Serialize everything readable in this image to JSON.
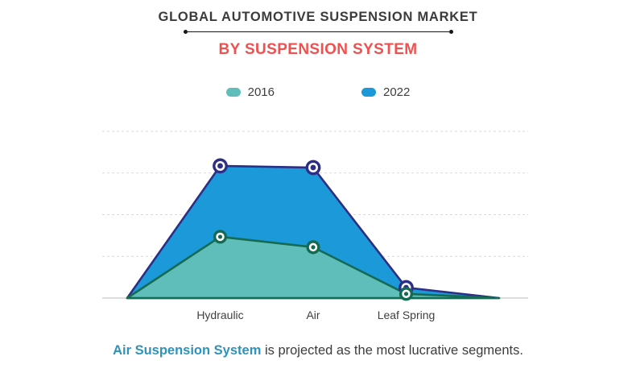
{
  "header": {
    "title": "GLOBAL AUTOMOTIVE SUSPENSION MARKET",
    "title_color": "#3b3b3d",
    "subtitle": "BY SUSPENSION SYSTEM",
    "subtitle_color": "#f0504f"
  },
  "chart_data": {
    "type": "area",
    "title": "Global Automotive Suspension Market by Suspension System",
    "categories": [
      "Hydraulic",
      "Air",
      "Leaf Spring"
    ],
    "series": [
      {
        "name": "2016",
        "values": [
          1.47,
          1.22,
          0.1
        ],
        "fill": "#5fbeba",
        "stroke": "#146b52"
      },
      {
        "name": "2022",
        "values": [
          3.17,
          3.13,
          0.25
        ],
        "fill": "#1b99d8",
        "stroke": "#2d2e85"
      }
    ],
    "xlabel": "",
    "ylabel": "",
    "ylim": [
      0,
      4.2
    ],
    "y_tick_labels_visible": false,
    "gridlines": "horizontal-dashed",
    "legend_position": "top-center",
    "baseline_anchored": true
  },
  "footer": {
    "highlight": "Air Suspension System",
    "highlight_color": "#2d93ba",
    "rest": " is projected as the most lucrative segments."
  }
}
